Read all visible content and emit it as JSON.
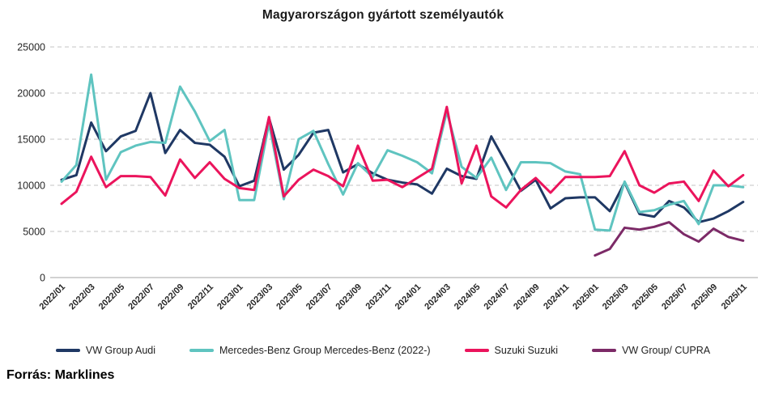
{
  "title": "Magyarországon gyártott személyautók",
  "source": "Forrás: Marklines",
  "chart_data": {
    "type": "line",
    "title": "Magyarországon gyártott személyautók",
    "xlabel": "",
    "ylabel": "",
    "ylim": [
      0,
      25000
    ],
    "yticks": [
      0,
      5000,
      10000,
      15000,
      20000,
      25000
    ],
    "grid": "horizontal-dashed",
    "legend_position": "bottom",
    "x_tick_every": 2,
    "x": [
      "2022/01",
      "2022/02",
      "2022/03",
      "2022/04",
      "2022/05",
      "2022/06",
      "2022/07",
      "2022/08",
      "2022/09",
      "2022/10",
      "2022/11",
      "2022/12",
      "2023/01",
      "2023/02",
      "2023/03",
      "2023/04",
      "2023/05",
      "2023/06",
      "2023/07",
      "2023/08",
      "2023/09",
      "2023/10",
      "2023/11",
      "2023/12",
      "2024/01",
      "2024/02",
      "2024/03",
      "2024/04",
      "2024/05",
      "2024/06",
      "2024/07",
      "2024/08",
      "2024/09",
      "2024/10",
      "2024/11",
      "2024/12",
      "2025/01",
      "2025/02",
      "2025/03",
      "2025/04",
      "2025/05",
      "2025/06",
      "2025/07",
      "2025/08",
      "2025/09",
      "2025/10",
      "2025/11"
    ],
    "series": [
      {
        "name": "VW Group Audi",
        "color": "#1f3864",
        "values": [
          10600,
          11100,
          16800,
          13700,
          15300,
          15900,
          20000,
          13500,
          16000,
          14600,
          14400,
          13100,
          9900,
          10500,
          17300,
          11700,
          13300,
          15700,
          16000,
          11400,
          12300,
          11300,
          10600,
          10300,
          10100,
          9100,
          11800,
          11000,
          10700,
          15300,
          12400,
          9400,
          10600,
          7500,
          8600,
          8700,
          8700,
          7200,
          10300,
          6900,
          6600,
          8300,
          7600,
          6000,
          6400,
          7200,
          8200
        ]
      },
      {
        "name": "Mercedes-Benz Group Mercedes-Benz (2022-)",
        "color": "#5fc4c0",
        "values": [
          10400,
          12200,
          22000,
          10600,
          13600,
          14300,
          14700,
          14600,
          20700,
          18000,
          14800,
          16000,
          8400,
          8400,
          16700,
          8500,
          15000,
          15900,
          12300,
          9000,
          12400,
          10900,
          13800,
          13200,
          12500,
          11300,
          18000,
          12000,
          10800,
          13000,
          9500,
          12500,
          12500,
          12400,
          11500,
          11200,
          5200,
          5100,
          10400,
          7100,
          7300,
          7900,
          8300,
          5800,
          10000,
          10000,
          9800
        ]
      },
      {
        "name": "Suzuki Suzuki",
        "color": "#eb145c",
        "values": [
          8000,
          9300,
          13100,
          9800,
          11000,
          11000,
          10900,
          8900,
          12800,
          10800,
          12500,
          10700,
          9700,
          9500,
          17400,
          8800,
          10600,
          11700,
          11000,
          9900,
          14300,
          10500,
          10600,
          9800,
          10800,
          11800,
          18500,
          10200,
          14300,
          8800,
          7600,
          9500,
          10800,
          9200,
          10900,
          10900,
          10900,
          11000,
          13700,
          10000,
          9200,
          10200,
          10400,
          8300,
          11600,
          9900,
          11100
        ]
      },
      {
        "name": "VW Group/ CUPRA",
        "color": "#7c2a67",
        "values": [
          null,
          null,
          null,
          null,
          null,
          null,
          null,
          null,
          null,
          null,
          null,
          null,
          null,
          null,
          null,
          null,
          null,
          null,
          null,
          null,
          null,
          null,
          null,
          null,
          null,
          null,
          null,
          null,
          null,
          null,
          null,
          null,
          null,
          null,
          null,
          null,
          2400,
          3100,
          5400,
          5200,
          5500,
          6000,
          4700,
          3900,
          5300,
          4400,
          4000
        ]
      }
    ]
  }
}
